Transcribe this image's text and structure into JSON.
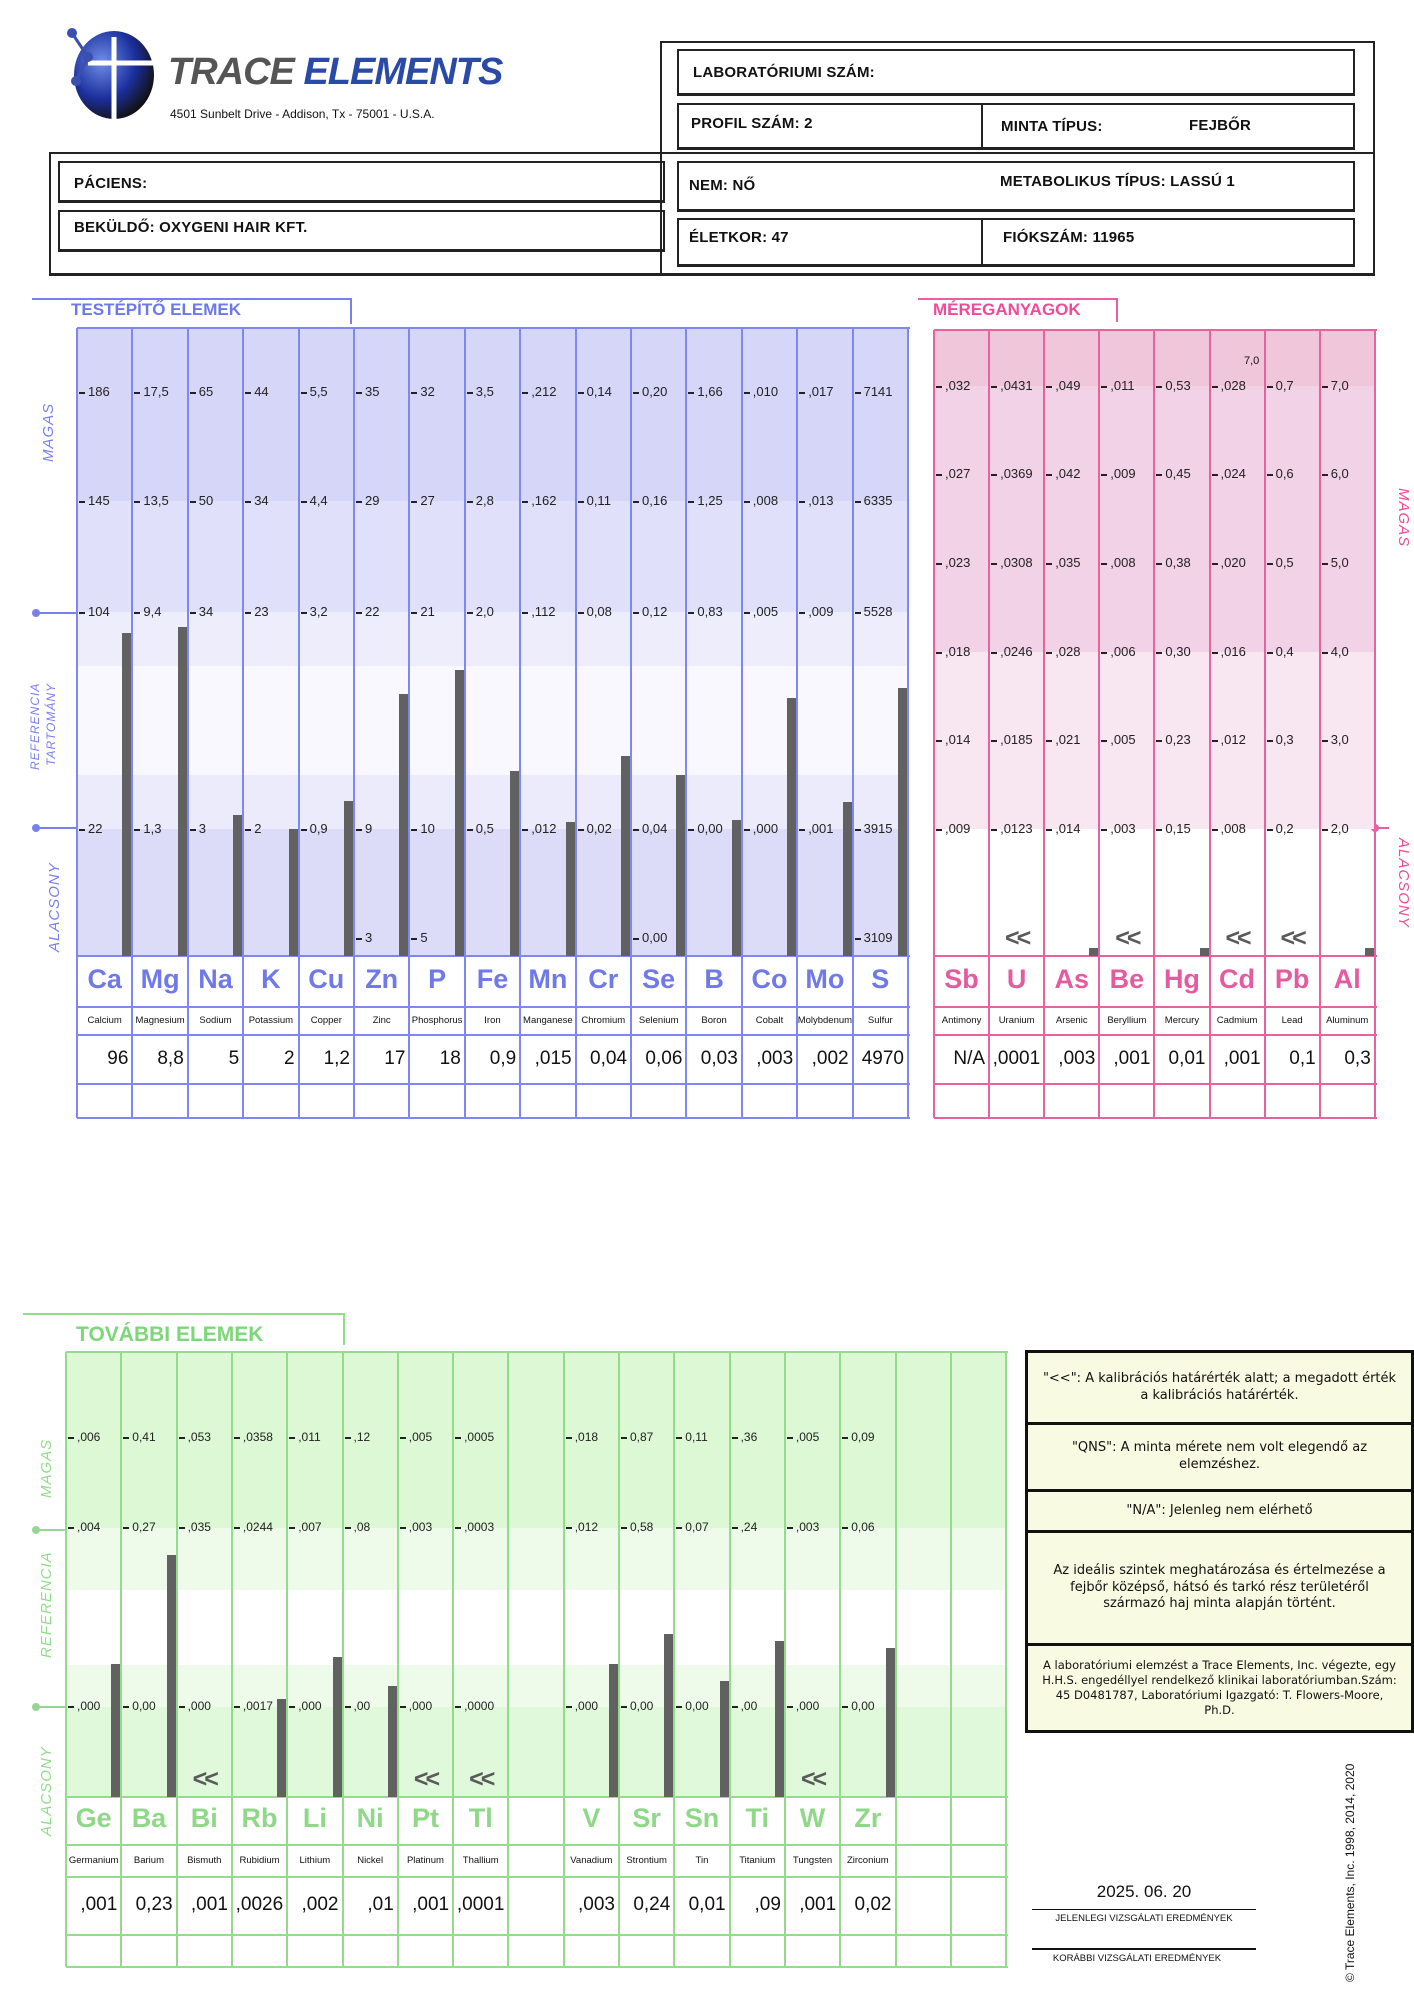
{
  "logo": {
    "brand_trace": "TRACE",
    "brand_elements": "ELEMENTS",
    "address": "4501 Sunbelt Drive - Addison, Tx - 75001 - U.S.A."
  },
  "header": {
    "lab_number": "LABORATÓRIUMI SZÁM:",
    "profile": "PROFIL SZÁM: 2",
    "sample_type_label": "MINTA TÍPUS:",
    "sample_type_value": "FEJBŐR",
    "patient": "PÁCIENS:",
    "sender": "BEKÜLDŐ: OXYGENI HAIR KFT.",
    "sex": "NEM: NŐ",
    "metabolic_type": "METABOLIKUS TÍPUS: LASSÚ 1",
    "age": "ÉLETKOR: 47",
    "account": "FIÓKSZÁM: 11965"
  },
  "nutrients": {
    "title": "TESTÉPÍTŐ ELEMEK",
    "side_high": "MAGAS",
    "side_ref_1": "REFERENCIA",
    "side_ref_2": "TARTOMÁNY",
    "side_low": "ALACSONY",
    "elements": [
      {
        "sym": "Ca",
        "name": "Calcium",
        "value": "96",
        "ticks": [
          "186",
          "145",
          "104",
          "22",
          null
        ],
        "level": 0.515
      },
      {
        "sym": "Mg",
        "name": "Magnesium",
        "value": "8,8",
        "ticks": [
          "17,5",
          "13,5",
          "9,4",
          "1,3",
          null
        ],
        "level": 0.524
      },
      {
        "sym": "Na",
        "name": "Sodium",
        "value": "5",
        "ticks": [
          "65",
          "50",
          "34",
          "3",
          null
        ],
        "level": 0.225
      },
      {
        "sym": "K",
        "name": "Potassium",
        "value": "2",
        "ticks": [
          "44",
          "34",
          "23",
          "2",
          null
        ],
        "level": 0.202
      },
      {
        "sym": "Cu",
        "name": "Copper",
        "value": "1,2",
        "ticks": [
          "5,5",
          "4,4",
          "3,2",
          "0,9",
          null
        ],
        "level": 0.247
      },
      {
        "sym": "Zn",
        "name": "Zinc",
        "value": "17",
        "ticks": [
          "35",
          "29",
          "22",
          "9",
          "3"
        ],
        "level": 0.417
      },
      {
        "sym": "P",
        "name": "Phosphorus",
        "value": "18",
        "ticks": [
          "32",
          "27",
          "21",
          "10",
          "5"
        ],
        "level": 0.456
      },
      {
        "sym": "Fe",
        "name": "Iron",
        "value": "0,9",
        "ticks": [
          "3,5",
          "2,8",
          "2,0",
          "0,5",
          null
        ],
        "level": 0.294
      },
      {
        "sym": "Mn",
        "name": "Manganese",
        "value": ",015",
        "ticks": [
          ",212",
          ",162",
          ",112",
          ",012",
          null
        ],
        "level": 0.213
      },
      {
        "sym": "Cr",
        "name": "Chromium",
        "value": "0,04",
        "ticks": [
          "0,14",
          "0,11",
          "0,08",
          "0,02",
          null
        ],
        "level": 0.319
      },
      {
        "sym": "Se",
        "name": "Selenium",
        "value": "0,06",
        "ticks": [
          "0,20",
          "0,16",
          "0,12",
          "0,04",
          "0,00"
        ],
        "level": 0.288
      },
      {
        "sym": "B",
        "name": "Boron",
        "value": "0,03",
        "ticks": [
          "1,66",
          "1,25",
          "0,83",
          "0,00",
          null
        ],
        "level": 0.217
      },
      {
        "sym": "Co",
        "name": "Cobalt",
        "value": ",003",
        "ticks": [
          ",010",
          ",008",
          ",005",
          ",000",
          null
        ],
        "level": 0.411
      },
      {
        "sym": "Mo",
        "name": "Molybdenum",
        "value": ",002",
        "ticks": [
          ",017",
          ",013",
          ",009",
          ",001",
          null
        ],
        "level": 0.245
      },
      {
        "sym": "S",
        "name": "Sulfur",
        "value": "4970",
        "ticks": [
          "7141",
          "6335",
          "5528",
          "3915",
          "3109"
        ],
        "level": 0.427
      }
    ]
  },
  "toxic": {
    "title": "MÉREGANYAGOK",
    "side_high": "MAGAS",
    "side_low": "ALACSONY",
    "pb_extra": "7,0",
    "elements": [
      {
        "sym": "Sb",
        "name": "Antimony",
        "value": "N/A",
        "ticks": [
          ",032",
          ",027",
          ",023",
          ",018",
          ",014",
          ",009"
        ],
        "level": null,
        "below": false
      },
      {
        "sym": "U",
        "name": "Uranium",
        "value": ",0001",
        "ticks": [
          ",0431",
          ",0369",
          ",0308",
          ",0246",
          ",0185",
          ",0123"
        ],
        "level": null,
        "below": true
      },
      {
        "sym": "As",
        "name": "Arsenic",
        "value": ",003",
        "ticks": [
          ",049",
          ",042",
          ",035",
          ",028",
          ",021",
          ",014"
        ],
        "level": 0.012,
        "below": false
      },
      {
        "sym": "Be",
        "name": "Beryllium",
        "value": ",001",
        "ticks": [
          ",011",
          ",009",
          ",008",
          ",006",
          ",005",
          ",003"
        ],
        "level": null,
        "below": true
      },
      {
        "sym": "Hg",
        "name": "Mercury",
        "value": "0,01",
        "ticks": [
          "0,53",
          "0,45",
          "0,38",
          "0,30",
          "0,23",
          "0,15"
        ],
        "level": 0.012,
        "below": false
      },
      {
        "sym": "Cd",
        "name": "Cadmium",
        "value": ",001",
        "ticks": [
          ",028",
          ",024",
          ",020",
          ",016",
          ",012",
          ",008"
        ],
        "level": null,
        "below": true
      },
      {
        "sym": "Pb",
        "name": "Lead",
        "value": "0,1",
        "ticks": [
          "0,7",
          "0,6",
          "0,5",
          "0,4",
          "0,3",
          "0,2"
        ],
        "level": null,
        "below": true
      },
      {
        "sym": "Al",
        "name": "Aluminum",
        "value": "0,3",
        "ticks": [
          "7,0",
          "6,0",
          "5,0",
          "4,0",
          "3,0",
          "2,0"
        ],
        "level": 0.012,
        "below": false
      }
    ]
  },
  "additional": {
    "title": "TOVÁBBI ELEMEK",
    "side_high": "MAGAS",
    "side_ref": "REFERENCIA",
    "side_low": "ALACSONY",
    "elements": [
      {
        "sym": "Ge",
        "name": "Germanium",
        "value": ",001",
        "ticks": [
          ",006",
          ",004",
          ",000"
        ],
        "level": 0.3,
        "below": false
      },
      {
        "sym": "Ba",
        "name": "Barium",
        "value": "0,23",
        "ticks": [
          "0,41",
          "0,27",
          "0,00"
        ],
        "level": 0.543,
        "below": false
      },
      {
        "sym": "Bi",
        "name": "Bismuth",
        "value": ",001",
        "ticks": [
          ",053",
          ",035",
          ",000"
        ],
        "level": null,
        "below": true
      },
      {
        "sym": "Rb",
        "name": "Rubidium",
        "value": ",0026",
        "ticks": [
          ",0358",
          ",0244",
          ",0017"
        ],
        "level": 0.22,
        "below": false
      },
      {
        "sym": "Li",
        "name": "Lithium",
        "value": ",002",
        "ticks": [
          ",011",
          ",007",
          ",000"
        ],
        "level": 0.315,
        "below": false
      },
      {
        "sym": "Ni",
        "name": "Nickel",
        "value": ",01",
        "ticks": [
          ",12",
          ",08",
          ",00"
        ],
        "level": 0.25,
        "below": false
      },
      {
        "sym": "Pt",
        "name": "Platinum",
        "value": ",001",
        "ticks": [
          ",005",
          ",003",
          ",000"
        ],
        "level": null,
        "below": true
      },
      {
        "sym": "Tl",
        "name": "Thallium",
        "value": ",0001",
        "ticks": [
          ",0005",
          ",0003",
          ",0000"
        ],
        "level": null,
        "below": true
      },
      {
        "sym": "",
        "name": "",
        "value": "",
        "ticks": [],
        "level": null,
        "below": false
      },
      {
        "sym": "V",
        "name": "Vanadium",
        "value": ",003",
        "ticks": [
          ",018",
          ",012",
          ",000"
        ],
        "level": 0.3,
        "below": false
      },
      {
        "sym": "Sr",
        "name": "Strontium",
        "value": "0,24",
        "ticks": [
          "0,87",
          "0,58",
          "0,00"
        ],
        "level": 0.367,
        "below": false
      },
      {
        "sym": "Sn",
        "name": "Tin",
        "value": "0,01",
        "ticks": [
          "0,11",
          "0,07",
          "0,00"
        ],
        "level": 0.26,
        "below": false
      },
      {
        "sym": "Ti",
        "name": "Titanium",
        "value": ",09",
        "ticks": [
          ",36",
          ",24",
          ",00"
        ],
        "level": 0.35,
        "below": false
      },
      {
        "sym": "W",
        "name": "Tungsten",
        "value": ",001",
        "ticks": [
          ",005",
          ",003",
          ",000"
        ],
        "level": null,
        "below": true
      },
      {
        "sym": "Zr",
        "name": "Zirconium",
        "value": "0,02",
        "ticks": [
          "0,09",
          "0,06",
          "0,00"
        ],
        "level": 0.335,
        "below": false
      },
      {
        "sym": "",
        "name": "",
        "value": "",
        "ticks": [],
        "level": null,
        "below": false
      },
      {
        "sym": "",
        "name": "",
        "value": "",
        "ticks": [],
        "level": null,
        "below": false
      }
    ]
  },
  "below_marker": "<<",
  "notes": [
    "\"<<\": A kalibrációs határérték alatt; a megadott érték a kalibrációs határérték.",
    "\"QNS\": A minta mérete nem volt elegendő az elemzéshez.",
    "\"N/A\": Jelenleg nem elérhető",
    "Az ideális szintek meghatározása és értelmezése a fejbőr középső, hátsó és tarkó rész területéről származó haj minta alapján történt.",
    "A laboratóriumi elemzést a Trace Elements, Inc. végezte, egy H.H.S. engedéllyel rendelkező klinikai laboratóriumban.Szám: 45 D0481787, Laboratóriumi Igazgató: T. Flowers-Moore, Ph.D."
  ],
  "results": {
    "date": "2025. 06. 20",
    "current_label": "JELENLEGI VIZSGÁLATI EREDMÉNYEK",
    "previous_label": "KORÁBBI VIZSGÁLATI EREDMÉNYEK"
  },
  "copyright": "© Trace Elements, Inc. 1998, 2014, 2020",
  "colors": {
    "nutrient": "#7880ee",
    "toxic": "#ea5fa3",
    "additional": "#8fde88",
    "bar": "#616161"
  }
}
